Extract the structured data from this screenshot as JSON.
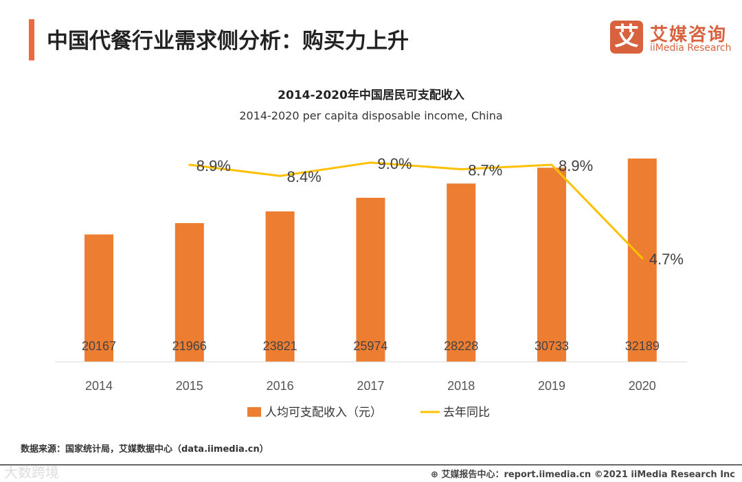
{
  "header": {
    "title": "中国代餐行业需求侧分析：购买力上升",
    "logo_mark": "艾",
    "logo_cn": "艾媒咨询",
    "logo_en": "iiMedia Research"
  },
  "chart_data": {
    "type": "bar+line",
    "title": "2014-2020年中国居民可支配收入",
    "subtitle": "2014-2020 per capita disposable income, China",
    "categories": [
      "2014",
      "2015",
      "2016",
      "2017",
      "2018",
      "2019",
      "2020"
    ],
    "series": [
      {
        "name": "人均可支配收入（元）",
        "type": "bar",
        "color": "#ed7d31",
        "values": [
          20167,
          21966,
          23821,
          25974,
          28228,
          30733,
          32189
        ]
      },
      {
        "name": "去年同比",
        "type": "line",
        "color": "#ffc000",
        "values": [
          null,
          8.9,
          8.4,
          9.0,
          8.7,
          8.9,
          4.7
        ],
        "labels": [
          null,
          "8.9%",
          "8.4%",
          "9.0%",
          "8.7%",
          "8.9%",
          "4.7%"
        ]
      }
    ],
    "ylim": [
      0,
      35000
    ],
    "y2lim": [
      0,
      12
    ],
    "legend": "bottom"
  },
  "footer": {
    "source": "数据来源：国家统计局，艾媒数据中心（data.iimedia.cn）",
    "credit": "⊕ 艾媒报告中心：report.iimedia.cn  ©2021  iiMedia Research Inc",
    "watermark": "大数跨境"
  }
}
